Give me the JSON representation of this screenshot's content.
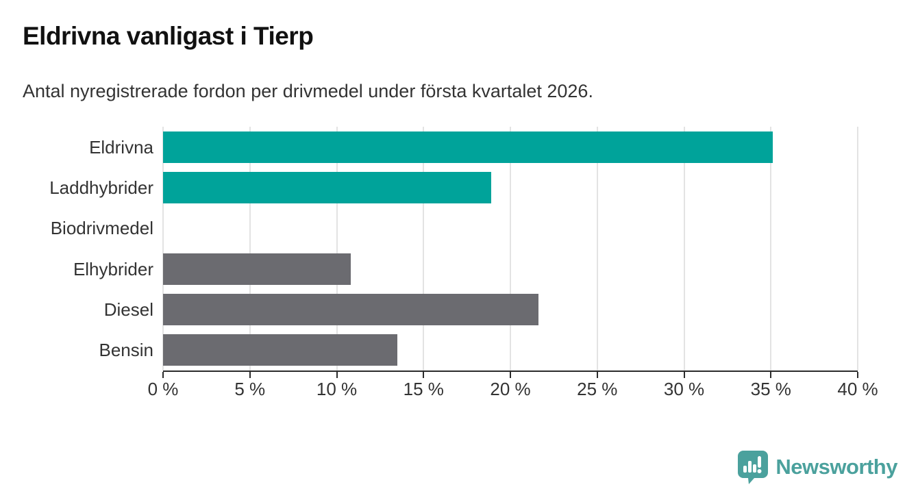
{
  "header": {
    "title": "Eldrivna vanligast i Tierp",
    "subtitle": "Antal nyregistrerade fordon per drivmedel under första kvartalet 2026."
  },
  "chart_data": {
    "type": "bar",
    "orientation": "horizontal",
    "title": "Eldrivna vanligast i Tierp",
    "subtitle": "Antal nyregistrerade fordon per drivmedel under första kvartalet 2026.",
    "categories": [
      "Eldrivna",
      "Laddhybrider",
      "Biodrivmedel",
      "Elhybrider",
      "Diesel",
      "Bensin"
    ],
    "values": [
      35.1,
      18.9,
      0,
      10.8,
      21.6,
      13.5
    ],
    "unit": "%",
    "bar_colors": [
      "#00a39a",
      "#00a39a",
      "#00a39a",
      "#6b6b70",
      "#6b6b70",
      "#6b6b70"
    ],
    "xlim": [
      0,
      40
    ],
    "xticks": [
      0,
      5,
      10,
      15,
      20,
      25,
      30,
      35,
      40
    ],
    "xtick_labels": [
      "0 %",
      "5 %",
      "10 %",
      "15 %",
      "20 %",
      "25 %",
      "30 %",
      "35 %",
      "40 %"
    ],
    "grid": true,
    "legend": false,
    "xlabel": "",
    "ylabel": ""
  },
  "branding": {
    "logo_text": "Newsworthy",
    "logo_icon": "bar-chart-speech-bubble-icon"
  },
  "colors": {
    "teal": "#00a39a",
    "gray": "#6b6b70",
    "logo": "#4ba19d",
    "axis": "#2b2b2b",
    "gridline": "#e3e3e3",
    "text": "#333333",
    "title": "#111111",
    "background": "#ffffff"
  }
}
